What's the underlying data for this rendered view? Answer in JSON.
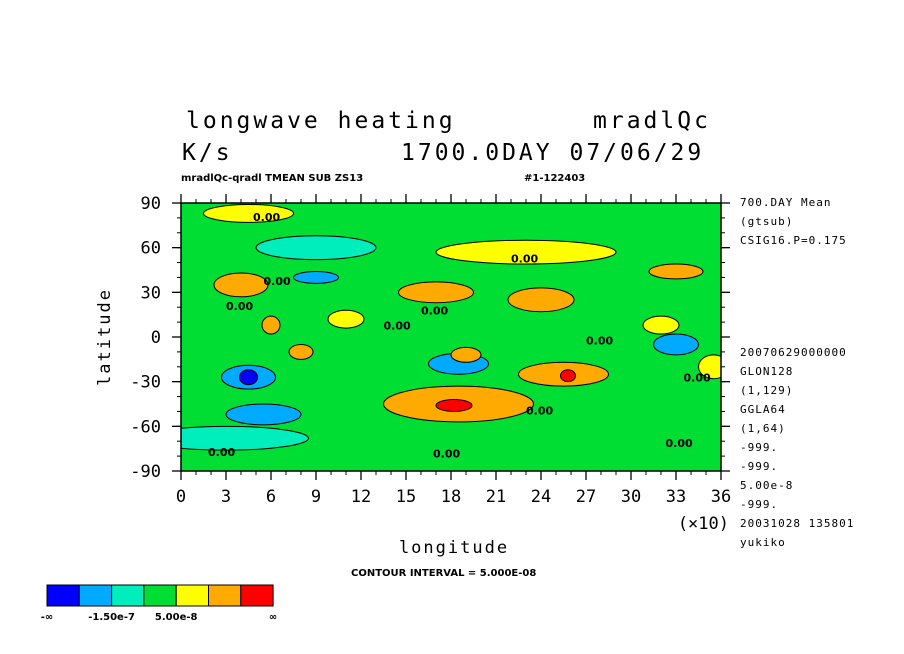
{
  "header": {
    "title_left": "longwave heating",
    "title_right": "mradlQc",
    "units": "K/s",
    "time": "1700.0DAY 07/06/29",
    "subtitle_left": "mradlQc-qradl TMEAN SUB ZS13",
    "subtitle_right": "#1-122403"
  },
  "right_meta_top": [
    "700.DAY Mean",
    "(gtsub)",
    "CSIG16.P=0.175"
  ],
  "right_meta_bottom": [
    "20070629000000",
    "GLON128",
    "(1,129)",
    "GGLA64",
    "(1,64)",
    "-999.",
    "-999.",
    "5.00e-8",
    "-999.",
    "20031028 135801",
    "yukiko"
  ],
  "contour_interval": "CONTOUR INTERVAL = 5.000E-08",
  "colorbar": {
    "colors": [
      "#0000ff",
      "#00aaff",
      "#00eebb",
      "#00dd33",
      "#ffff00",
      "#ffaa00",
      "#ff0000"
    ],
    "labels": [
      "-∞",
      "-1.50e-7",
      "5.00e-8",
      "∞"
    ]
  },
  "chart_data": {
    "type": "heatmap",
    "xlabel": "longitude",
    "ylabel": "latitude",
    "x_ticks": [
      "0",
      "3",
      "6",
      "9",
      "12",
      "15",
      "18",
      "21",
      "24",
      "27",
      "30",
      "33",
      "36"
    ],
    "x_multiplier": "(×10)",
    "y_ticks": [
      "90",
      "60",
      "30",
      "0",
      "-30",
      "-60",
      "-90"
    ],
    "xlim": [
      0,
      360
    ],
    "ylim": [
      -90,
      90
    ],
    "contour_labels": [
      "0.00",
      "0.00",
      "0.00",
      "0.00",
      "0.00",
      "0.00",
      "0.00",
      "0.00",
      "0.00",
      "0.00",
      "0.00",
      "0.00"
    ],
    "features": [
      {
        "lon": 45,
        "lat": 83,
        "level": 4,
        "rx": 30,
        "ry": 6
      },
      {
        "lon": 230,
        "lat": 57,
        "level": 4,
        "rx": 60,
        "ry": 8
      },
      {
        "lon": 330,
        "lat": 44,
        "level": 5,
        "rx": 18,
        "ry": 5
      },
      {
        "lon": 40,
        "lat": 35,
        "level": 5,
        "rx": 18,
        "ry": 8
      },
      {
        "lon": 170,
        "lat": 30,
        "level": 5,
        "rx": 25,
        "ry": 7
      },
      {
        "lon": 240,
        "lat": 25,
        "level": 5,
        "rx": 22,
        "ry": 8
      },
      {
        "lon": 110,
        "lat": 12,
        "level": 4,
        "rx": 12,
        "ry": 6
      },
      {
        "lon": 320,
        "lat": 8,
        "level": 4,
        "rx": 12,
        "ry": 6
      },
      {
        "lon": 60,
        "lat": 8,
        "level": 5,
        "rx": 6,
        "ry": 6
      },
      {
        "lon": 80,
        "lat": -10,
        "level": 5,
        "rx": 8,
        "ry": 5
      },
      {
        "lon": 190,
        "lat": -12,
        "level": 5,
        "rx": 10,
        "ry": 5
      },
      {
        "lon": 255,
        "lat": -25,
        "level": 5,
        "rx": 30,
        "ry": 8
      },
      {
        "lon": 258,
        "lat": -26,
        "level": 6,
        "rx": 5,
        "ry": 4
      },
      {
        "lon": 185,
        "lat": -45,
        "level": 5,
        "rx": 50,
        "ry": 12
      },
      {
        "lon": 182,
        "lat": -46,
        "level": 6,
        "rx": 12,
        "ry": 4
      },
      {
        "lon": 355,
        "lat": -20,
        "level": 4,
        "rx": 10,
        "ry": 8
      },
      {
        "lon": 45,
        "lat": -27,
        "level": 0,
        "rx": 6,
        "ry": 5
      },
      {
        "lon": 45,
        "lat": -27,
        "level": 1,
        "rx": 18,
        "ry": 8
      },
      {
        "lon": 55,
        "lat": -52,
        "level": 1,
        "rx": 25,
        "ry": 7
      },
      {
        "lon": 90,
        "lat": 40,
        "level": 1,
        "rx": 15,
        "ry": 4
      },
      {
        "lon": 185,
        "lat": -18,
        "level": 1,
        "rx": 20,
        "ry": 7
      },
      {
        "lon": 330,
        "lat": -5,
        "level": 1,
        "rx": 15,
        "ry": 7
      },
      {
        "lon": 30,
        "lat": -68,
        "level": 2,
        "rx": 55,
        "ry": 8
      },
      {
        "lon": 90,
        "lat": 60,
        "level": 2,
        "rx": 40,
        "ry": 8
      }
    ]
  }
}
